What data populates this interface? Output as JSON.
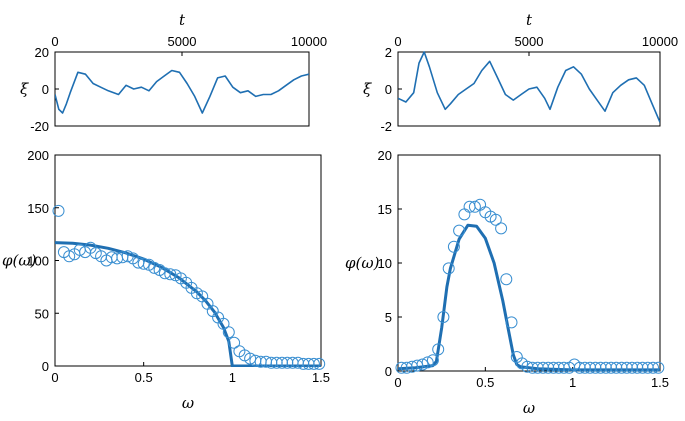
{
  "chart_data": [
    {
      "id": "ts-left",
      "type": "line",
      "xlabel": "t",
      "ylabel": "ξ",
      "xlim": [
        0,
        10000
      ],
      "ylim": [
        -20,
        20
      ],
      "xticks": [
        0,
        5000,
        10000
      ],
      "yticks": [
        -20,
        0,
        20
      ],
      "x_axis_location": "top",
      "color": "#1f6fb2",
      "series": [
        {
          "name": "xi(t)",
          "x": [
            0,
            150,
            300,
            450,
            600,
            900,
            1200,
            1500,
            1800,
            2100,
            2500,
            2800,
            3100,
            3400,
            3700,
            4000,
            4300,
            4600,
            4900,
            5200,
            5500,
            5800,
            6100,
            6400,
            6700,
            7000,
            7300,
            7600,
            7900,
            8200,
            8500,
            8800,
            9100,
            9400,
            9700,
            10000
          ],
          "values": [
            -3,
            -11,
            -13,
            -8,
            -2,
            9,
            8,
            3,
            1,
            -1,
            -3,
            2,
            0,
            1,
            -1,
            4,
            7,
            10,
            9,
            3,
            -4,
            -13,
            -4,
            6,
            7,
            1,
            -2,
            -1,
            -4,
            -3,
            -3,
            -1,
            2,
            5,
            7,
            8
          ]
        }
      ]
    },
    {
      "id": "spec-left",
      "type": "scatter",
      "xlabel": "ω",
      "ylabel": "φ(ω)",
      "xlim": [
        0,
        1.5
      ],
      "ylim": [
        0,
        200
      ],
      "xticks": [
        0,
        0.5,
        1,
        1.5
      ],
      "yticks": [
        0,
        50,
        100,
        150,
        200
      ],
      "color": "#1f6fb2",
      "markers": {
        "x": [
          0.02,
          0.05,
          0.08,
          0.11,
          0.14,
          0.17,
          0.2,
          0.23,
          0.26,
          0.29,
          0.32,
          0.35,
          0.38,
          0.41,
          0.44,
          0.47,
          0.5,
          0.53,
          0.56,
          0.59,
          0.62,
          0.65,
          0.68,
          0.71,
          0.74,
          0.77,
          0.8,
          0.83,
          0.86,
          0.89,
          0.92,
          0.95,
          0.98,
          1.01,
          1.04,
          1.07,
          1.1,
          1.13,
          1.16,
          1.19,
          1.22,
          1.25,
          1.28,
          1.31,
          1.34,
          1.37,
          1.4,
          1.43,
          1.46,
          1.49
        ],
        "values": [
          147,
          108,
          104,
          106,
          110,
          108,
          112,
          107,
          104,
          100,
          103,
          102,
          103,
          104,
          102,
          98,
          97,
          96,
          93,
          91,
          88,
          87,
          86,
          83,
          79,
          74,
          69,
          66,
          59,
          52,
          46,
          40,
          32,
          22,
          14,
          10,
          7,
          5,
          4,
          4,
          3,
          3,
          3,
          3,
          3,
          3,
          2,
          2,
          2,
          2
        ]
      },
      "curve": {
        "x": [
          0,
          0.1,
          0.2,
          0.3,
          0.4,
          0.5,
          0.6,
          0.7,
          0.8,
          0.85,
          0.9,
          0.95,
          0.98,
          1.0,
          1.02,
          1.1,
          1.2,
          1.3,
          1.4,
          1.5
        ],
        "values": [
          117,
          116.4,
          114.6,
          111.6,
          107.2,
          101.3,
          93.6,
          83.5,
          70.2,
          61.7,
          51,
          36.5,
          23.3,
          0,
          0,
          0,
          0,
          0,
          0,
          0
        ]
      }
    },
    {
      "id": "ts-right",
      "type": "line",
      "xlabel": "t",
      "ylabel": "ξ",
      "xlim": [
        0,
        10000
      ],
      "ylim": [
        -2,
        2
      ],
      "xticks": [
        0,
        5000,
        10000
      ],
      "yticks": [
        -2,
        0,
        2
      ],
      "x_axis_location": "top",
      "color": "#1f6fb2",
      "series": [
        {
          "name": "xi(t)",
          "x": [
            0,
            300,
            600,
            800,
            1000,
            1200,
            1500,
            1800,
            2000,
            2300,
            2600,
            2900,
            3200,
            3500,
            3800,
            4100,
            4400,
            4700,
            5000,
            5300,
            5600,
            5800,
            6100,
            6400,
            6700,
            7000,
            7300,
            7600,
            7900,
            8200,
            8500,
            8800,
            9100,
            9400,
            9700,
            10000
          ],
          "values": [
            -0.5,
            -0.7,
            -0.2,
            1.4,
            2.0,
            1.2,
            -0.2,
            -1.1,
            -0.8,
            -0.3,
            0.0,
            0.3,
            1.0,
            1.5,
            0.6,
            -0.3,
            -0.6,
            -0.3,
            0.0,
            0.1,
            -0.5,
            -1.1,
            0.1,
            1.0,
            1.2,
            0.8,
            0.0,
            -0.6,
            -1.2,
            -0.2,
            0.2,
            0.5,
            0.6,
            0.2,
            -0.8,
            -1.8
          ]
        }
      ]
    },
    {
      "id": "spec-right",
      "type": "scatter",
      "xlabel": "ω",
      "ylabel": "φ(ω)",
      "xlim": [
        0,
        1.5
      ],
      "ylim": [
        0,
        20
      ],
      "xticks": [
        0,
        0.5,
        1,
        1.5
      ],
      "yticks": [
        0,
        5,
        10,
        15,
        20
      ],
      "color": "#1f6fb2",
      "markers": {
        "x": [
          0.02,
          0.05,
          0.08,
          0.11,
          0.14,
          0.17,
          0.2,
          0.23,
          0.26,
          0.29,
          0.32,
          0.35,
          0.38,
          0.41,
          0.44,
          0.47,
          0.5,
          0.53,
          0.56,
          0.59,
          0.62,
          0.65,
          0.68,
          0.71,
          0.74,
          0.77,
          0.8,
          0.83,
          0.86,
          0.89,
          0.92,
          0.95,
          0.98,
          1.01,
          1.04,
          1.07,
          1.1,
          1.13,
          1.16,
          1.19,
          1.22,
          1.25,
          1.28,
          1.31,
          1.34,
          1.37,
          1.4,
          1.43,
          1.46,
          1.49
        ],
        "values": [
          0.3,
          0.3,
          0.4,
          0.5,
          0.6,
          0.8,
          1.0,
          2.0,
          5.0,
          9.5,
          11.5,
          13.0,
          14.5,
          15.2,
          15.2,
          15.4,
          14.7,
          14.3,
          14.0,
          13.2,
          8.5,
          4.5,
          1.3,
          0.7,
          0.4,
          0.3,
          0.3,
          0.3,
          0.3,
          0.3,
          0.3,
          0.3,
          0.3,
          0.6,
          0.3,
          0.3,
          0.3,
          0.3,
          0.3,
          0.3,
          0.3,
          0.3,
          0.3,
          0.3,
          0.3,
          0.3,
          0.3,
          0.3,
          0.3,
          0.3
        ]
      },
      "curve": {
        "x": [
          0,
          0.1,
          0.2,
          0.22,
          0.25,
          0.28,
          0.3,
          0.35,
          0.4,
          0.45,
          0.5,
          0.55,
          0.6,
          0.63,
          0.66,
          0.68,
          0.7,
          0.75,
          0.8,
          0.9,
          1.0,
          1.5
        ],
        "values": [
          0.2,
          0.3,
          0.5,
          0.9,
          4.0,
          7.8,
          9.5,
          12.2,
          13.5,
          13.4,
          12.3,
          10.0,
          6.5,
          4.0,
          1.5,
          0.6,
          0.4,
          0.3,
          0.2,
          0.15,
          0.1,
          0.1
        ]
      }
    }
  ]
}
